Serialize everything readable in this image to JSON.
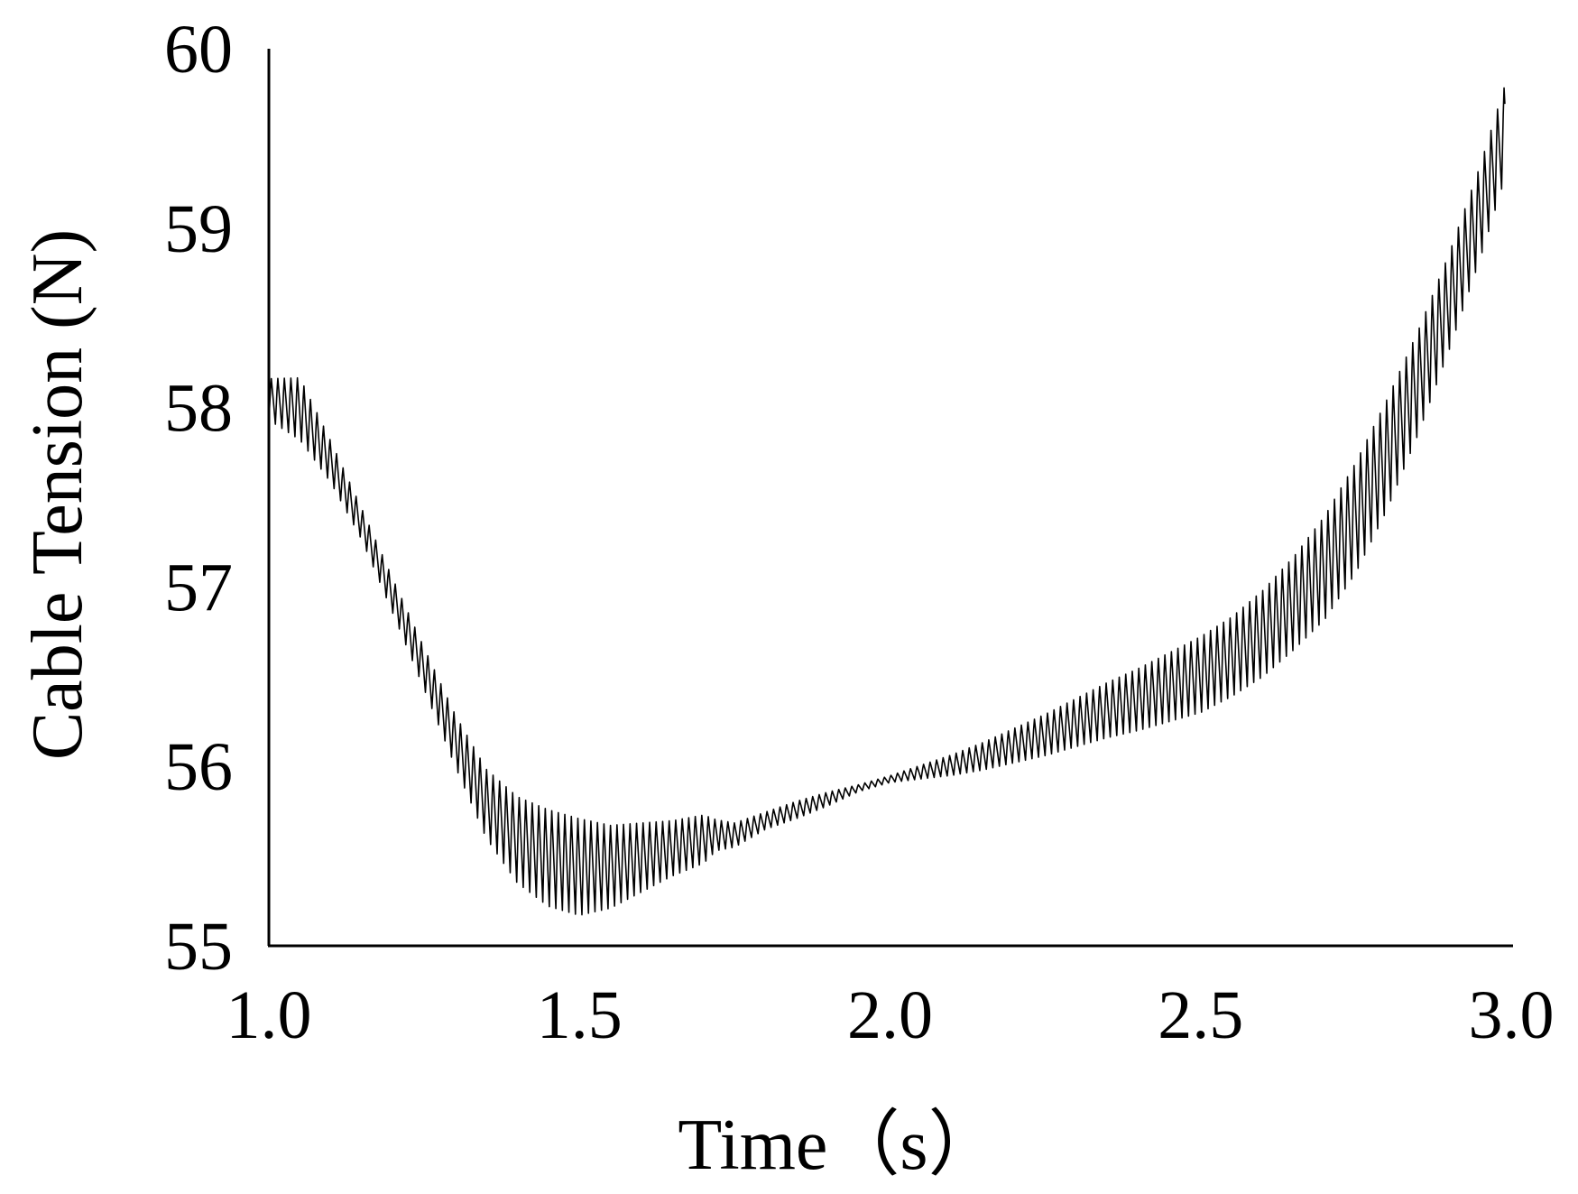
{
  "chart_data": {
    "type": "line",
    "title": "",
    "xlabel": "Time（s）",
    "ylabel": "Cable Tension (N)",
    "xlim": [
      1.0,
      3.0
    ],
    "ylim": [
      55,
      60
    ],
    "x_ticks": [
      "1.0",
      "1.5",
      "2.0",
      "2.5",
      "3.0"
    ],
    "y_ticks": [
      "55",
      "56",
      "57",
      "58",
      "59",
      "60"
    ],
    "grid": false,
    "legend": "none",
    "line_color": "#000000",
    "oscillation_period_s": 0.0105,
    "series": [
      {
        "name": "",
        "envelope_time": [
          1.0,
          1.05,
          1.1,
          1.15,
          1.2,
          1.25,
          1.3,
          1.35,
          1.4,
          1.45,
          1.5,
          1.55,
          1.6,
          1.65,
          1.7,
          1.72,
          1.75,
          1.8,
          1.85,
          1.9,
          1.95,
          2.0,
          2.05,
          2.1,
          2.15,
          2.2,
          2.25,
          2.3,
          2.35,
          2.4,
          2.45,
          2.5,
          2.55,
          2.6,
          2.65,
          2.7,
          2.75,
          2.8,
          2.85,
          2.9,
          2.95,
          2.99
        ],
        "center": [
          58.05,
          58.0,
          57.7,
          57.35,
          56.95,
          56.55,
          56.15,
          55.8,
          55.6,
          55.5,
          55.45,
          55.45,
          55.5,
          55.55,
          55.6,
          55.62,
          55.62,
          55.7,
          55.76,
          55.82,
          55.88,
          55.93,
          55.97,
          56.01,
          56.06,
          56.12,
          56.18,
          56.25,
          56.32,
          56.38,
          56.45,
          56.52,
          56.62,
          56.75,
          56.92,
          57.12,
          57.4,
          57.75,
          58.15,
          58.6,
          59.1,
          59.55
        ],
        "amplitude": [
          0.12,
          0.18,
          0.12,
          0.09,
          0.1,
          0.12,
          0.15,
          0.2,
          0.25,
          0.28,
          0.28,
          0.24,
          0.2,
          0.16,
          0.14,
          0.09,
          0.07,
          0.05,
          0.05,
          0.04,
          0.02,
          0.02,
          0.04,
          0.06,
          0.08,
          0.1,
          0.12,
          0.14,
          0.16,
          0.18,
          0.2,
          0.22,
          0.23,
          0.25,
          0.27,
          0.3,
          0.32,
          0.32,
          0.3,
          0.28,
          0.27,
          0.27
        ]
      }
    ]
  }
}
